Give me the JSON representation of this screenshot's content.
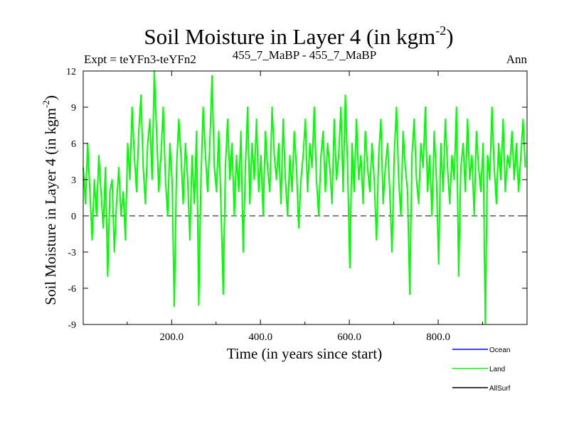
{
  "chart_data": {
    "type": "line",
    "title": "Soil Moisture in Layer 4 (in kgm",
    "title_exp": "-2",
    "title_suffix": ")",
    "subtitle_left": "Expt = teYFn3-teYFn2",
    "subtitle_center": "455_7_MaBP - 455_7_MaBP",
    "subtitle_right": "Ann",
    "xlabel": "Time (in years since start)",
    "ylabel": "Soil Moisture in Layer 4 (in kgm",
    "ylabel_exp": "-2",
    "ylabel_suffix": ")",
    "xlim": [
      1,
      1000
    ],
    "ylim": [
      -9,
      12
    ],
    "xticks": [
      200,
      400,
      600,
      800
    ],
    "xtick_labels": [
      "200.0",
      "400.0",
      "600.0",
      "800.0"
    ],
    "yticks": [
      -9,
      -6,
      -3,
      0,
      3,
      6,
      9,
      12
    ],
    "ytick_labels": [
      "-9",
      "-6",
      "-3",
      "0",
      "3",
      "6",
      "9",
      "12"
    ],
    "zero_line": true,
    "legend": {
      "position": "bottom-right",
      "entries": [
        {
          "name": "Ocean",
          "color": "#0000ff"
        },
        {
          "name": "Land",
          "color": "#00ff00"
        },
        {
          "name": "AllSurf",
          "color": "#000000"
        }
      ]
    },
    "series": [
      {
        "name": "Land",
        "color": "#00ff00",
        "x_start": 1,
        "x_step": 5,
        "values": [
          4,
          1,
          6,
          2,
          -2,
          3,
          0,
          5,
          2,
          -1,
          4,
          -5,
          2,
          3,
          -3,
          1,
          4,
          0,
          2,
          -2,
          6,
          3,
          9,
          5,
          2,
          7,
          10,
          4,
          1,
          6,
          8,
          3,
          12,
          7,
          2,
          5,
          9,
          3,
          0,
          6,
          3,
          -7.5,
          4,
          8,
          5,
          1,
          6,
          3,
          -2,
          5,
          1,
          7,
          -7.4,
          3,
          9,
          5,
          2,
          6,
          11.6,
          4,
          2,
          7,
          1,
          -6.5,
          4,
          8,
          3,
          6,
          0,
          5,
          2,
          7,
          -3,
          4,
          9,
          1,
          6,
          3,
          8,
          2,
          5,
          0,
          7,
          4,
          2,
          9,
          5,
          3,
          6,
          1,
          8,
          3,
          0,
          5,
          2,
          7,
          4,
          -1,
          3,
          5,
          8,
          2,
          6,
          4,
          9,
          3,
          0,
          5,
          7,
          2,
          6,
          4,
          1,
          8,
          3,
          5,
          9,
          2,
          10,
          4,
          -4.3,
          6,
          2,
          8,
          3,
          5,
          1,
          7,
          4,
          2,
          6,
          3,
          -2,
          5,
          8,
          1,
          4,
          6,
          2,
          -3,
          5,
          9,
          3,
          0,
          7,
          4,
          2,
          -6.5,
          5,
          8,
          3,
          1,
          6,
          4,
          9,
          2,
          5,
          0,
          7,
          3,
          -4,
          6,
          2,
          8,
          4,
          1,
          5,
          3,
          9,
          -5,
          4,
          6,
          2,
          8,
          3,
          5,
          0,
          7,
          4,
          2,
          6,
          -8.9,
          5,
          3,
          9,
          4,
          1,
          6,
          3,
          8,
          2,
          5,
          4,
          7,
          3,
          6,
          2,
          5,
          8,
          4
        ]
      }
    ]
  }
}
